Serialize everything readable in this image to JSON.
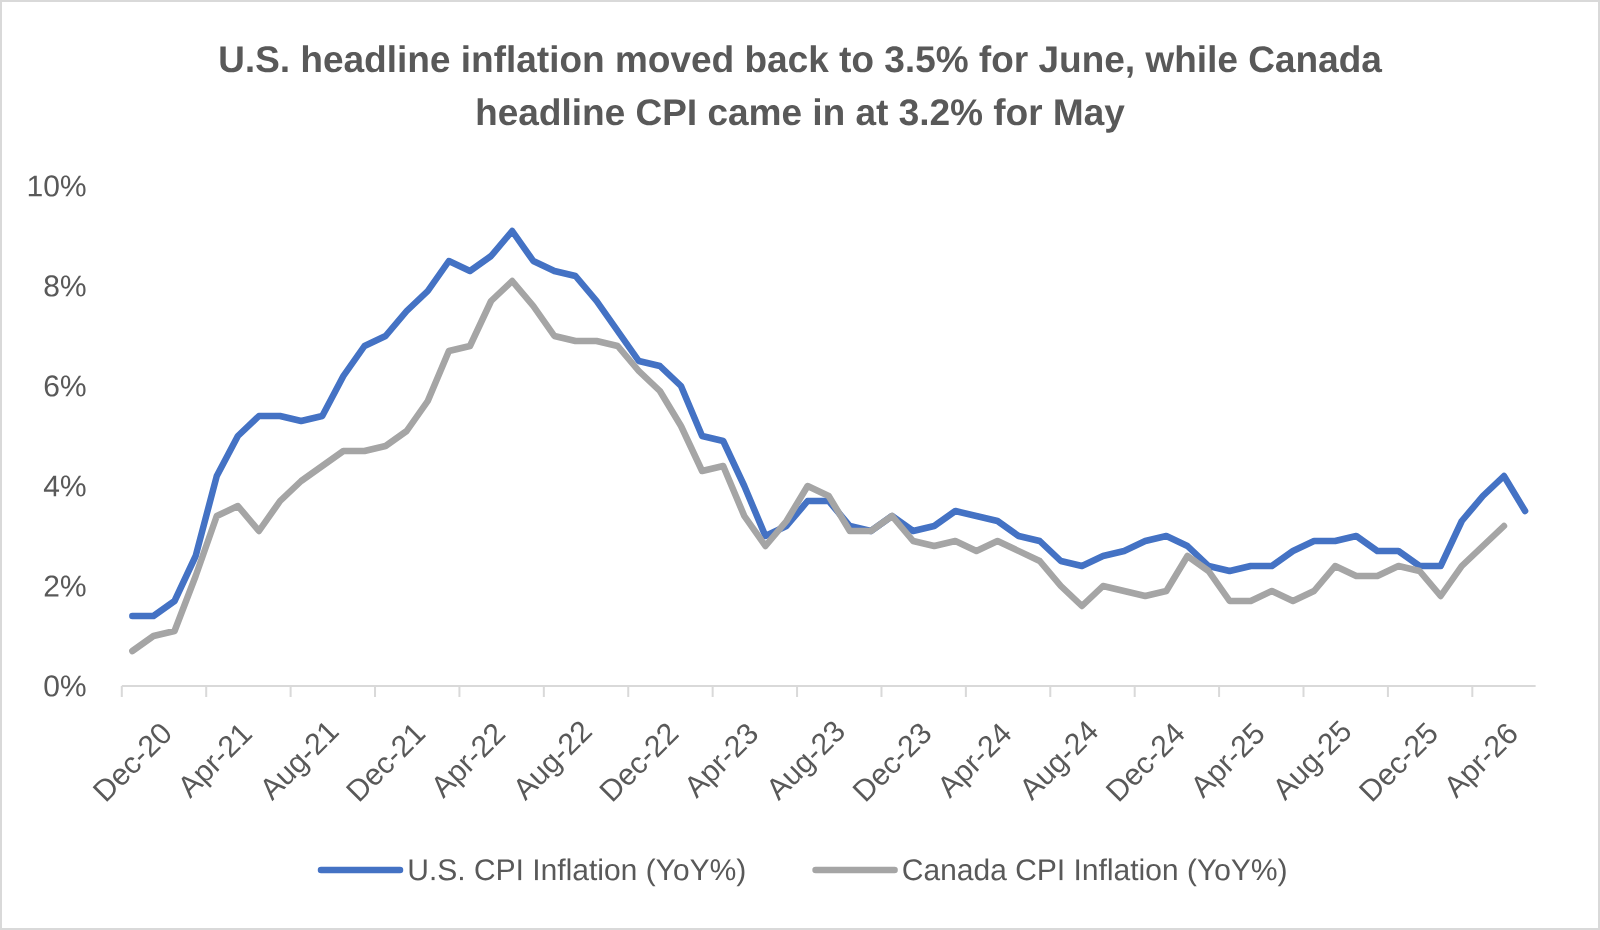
{
  "chart_data": {
    "type": "line",
    "title": "U.S. headline inflation moved back to 3.5% for June, while Canada headline CPI came in at 3.2% for May",
    "categories": [
      "Dec-20",
      null,
      null,
      null,
      "Apr-21",
      null,
      null,
      null,
      "Aug-21",
      null,
      null,
      null,
      "Dec-21",
      null,
      null,
      null,
      "Apr-22",
      null,
      null,
      null,
      "Aug-22",
      null,
      null,
      null,
      "Dec-22",
      null,
      null,
      null,
      "Apr-23",
      null,
      null,
      null,
      "Aug-23",
      null,
      null,
      null,
      "Dec-23",
      null,
      null,
      null,
      "Apr-24",
      null,
      null,
      null,
      "Aug-24",
      null,
      null,
      null,
      "Dec-24",
      null,
      null,
      null,
      "Apr-25",
      null,
      null,
      null,
      "Aug-25",
      null,
      null,
      null,
      "Dec-25",
      null,
      null,
      null,
      "Apr-26",
      null,
      null
    ],
    "series": [
      {
        "name": "U.S. CPI Inflation (YoY%)",
        "color": "#4472c4",
        "values": [
          1.4,
          1.4,
          1.7,
          2.6,
          4.2,
          5.0,
          5.4,
          5.4,
          5.3,
          5.4,
          6.2,
          6.8,
          7.0,
          7.5,
          7.9,
          8.5,
          8.3,
          8.6,
          9.1,
          8.5,
          8.3,
          8.2,
          7.7,
          7.1,
          6.5,
          6.4,
          6.0,
          5.0,
          4.9,
          4.0,
          3.0,
          3.2,
          3.7,
          3.7,
          3.2,
          3.1,
          3.4,
          3.1,
          3.2,
          3.5,
          3.4,
          3.3,
          3.0,
          2.9,
          2.5,
          2.4,
          2.6,
          2.7,
          2.9,
          3.0,
          2.8,
          2.4,
          2.3,
          2.4,
          2.4,
          2.7,
          2.9,
          2.9,
          3.0,
          2.7,
          2.7,
          2.4,
          2.4,
          3.3,
          3.8,
          4.2,
          3.5
        ]
      },
      {
        "name": "Canada CPI Inflation (YoY%)",
        "color": "#a5a5a5",
        "values": [
          0.7,
          1.0,
          1.1,
          2.2,
          3.4,
          3.6,
          3.1,
          3.7,
          4.1,
          4.4,
          4.7,
          4.7,
          4.8,
          5.1,
          5.7,
          6.7,
          6.8,
          7.7,
          8.1,
          7.6,
          7.0,
          6.9,
          6.9,
          6.8,
          6.3,
          5.9,
          5.2,
          4.3,
          4.4,
          3.4,
          2.8,
          3.3,
          4.0,
          3.8,
          3.1,
          3.1,
          3.4,
          2.9,
          2.8,
          2.9,
          2.7,
          2.9,
          2.7,
          2.5,
          2.0,
          1.6,
          2.0,
          1.9,
          1.8,
          1.9,
          2.6,
          2.3,
          1.7,
          1.7,
          1.9,
          1.7,
          1.9,
          2.4,
          2.2,
          2.2,
          2.4,
          2.3,
          1.8,
          2.4,
          2.8,
          3.2,
          null
        ]
      }
    ],
    "ylim": [
      0,
      10
    ],
    "yticks": [
      {
        "value": 0,
        "label": "0%"
      },
      {
        "value": 2,
        "label": "2%"
      },
      {
        "value": 4,
        "label": "4%"
      },
      {
        "value": 6,
        "label": "6%"
      },
      {
        "value": 8,
        "label": "8%"
      },
      {
        "value": 10,
        "label": "10%"
      }
    ],
    "legend": "bottom",
    "line_style": "solid"
  }
}
